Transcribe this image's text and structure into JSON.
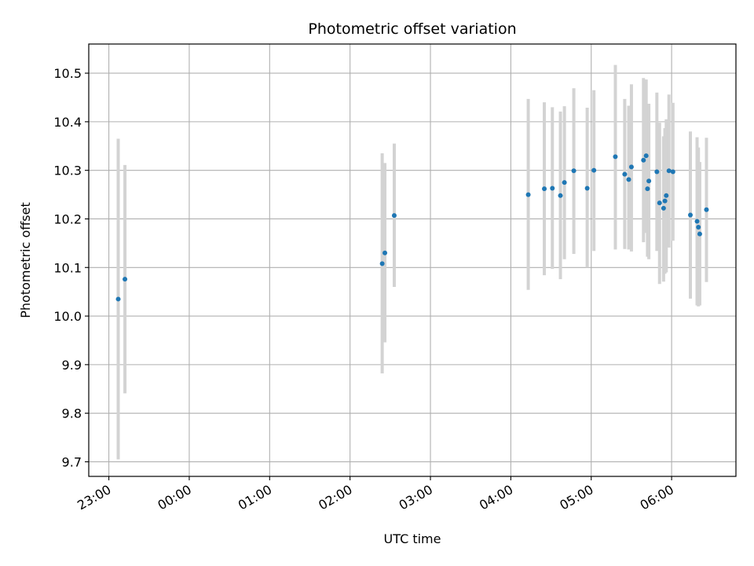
{
  "chart_data": {
    "type": "scatter",
    "title": "Photometric offset variation",
    "xlabel": "UTC time",
    "ylabel": "Photometric offset",
    "xlim": [
      "22:45",
      "06:48"
    ],
    "ylim": [
      9.67,
      10.56
    ],
    "x_ticks": [
      "23:00",
      "00:00",
      "01:00",
      "02:00",
      "03:00",
      "04:00",
      "05:00",
      "06:00"
    ],
    "y_ticks": [
      "9.7",
      "9.8",
      "9.9",
      "10.0",
      "10.1",
      "10.2",
      "10.3",
      "10.4",
      "10.5"
    ],
    "grid": true,
    "legend": "none",
    "colors": {
      "point": "#1f77b4",
      "errorbar": "#d3d3d3",
      "grid": "#b0b0b0"
    },
    "points": [
      {
        "t": "23:07",
        "y": 10.035,
        "lo": 9.705,
        "hi": 10.365
      },
      {
        "t": "23:12",
        "y": 10.076,
        "lo": 9.841,
        "hi": 10.311
      },
      {
        "t": "02:24",
        "y": 10.108,
        "lo": 9.882,
        "hi": 10.335
      },
      {
        "t": "02:26",
        "y": 10.13,
        "lo": 9.946,
        "hi": 10.315
      },
      {
        "t": "02:33",
        "y": 10.207,
        "lo": 10.06,
        "hi": 10.355
      },
      {
        "t": "04:13",
        "y": 10.25,
        "lo": 10.054,
        "hi": 10.447
      },
      {
        "t": "04:25",
        "y": 10.262,
        "lo": 10.084,
        "hi": 10.44
      },
      {
        "t": "04:31",
        "y": 10.263,
        "lo": 10.097,
        "hi": 10.43
      },
      {
        "t": "04:37",
        "y": 10.248,
        "lo": 10.076,
        "hi": 10.421
      },
      {
        "t": "04:40",
        "y": 10.275,
        "lo": 10.117,
        "hi": 10.432
      },
      {
        "t": "04:47",
        "y": 10.299,
        "lo": 10.128,
        "hi": 10.469
      },
      {
        "t": "04:57",
        "y": 10.263,
        "lo": 10.1,
        "hi": 10.429
      },
      {
        "t": "05:02",
        "y": 10.3,
        "lo": 10.134,
        "hi": 10.465
      },
      {
        "t": "05:18",
        "y": 10.328,
        "lo": 10.137,
        "hi": 10.517
      },
      {
        "t": "05:25",
        "y": 10.292,
        "lo": 10.138,
        "hi": 10.447
      },
      {
        "t": "05:28",
        "y": 10.281,
        "lo": 10.137,
        "hi": 10.433
      },
      {
        "t": "05:30",
        "y": 10.307,
        "lo": 10.133,
        "hi": 10.477
      },
      {
        "t": "05:39",
        "y": 10.321,
        "lo": 10.152,
        "hi": 10.49
      },
      {
        "t": "05:41",
        "y": 10.33,
        "lo": 10.171,
        "hi": 10.487
      },
      {
        "t": "05:42",
        "y": 10.262,
        "lo": 10.122,
        "hi": 10.4
      },
      {
        "t": "05:43",
        "y": 10.278,
        "lo": 10.117,
        "hi": 10.437
      },
      {
        "t": "05:49",
        "y": 10.297,
        "lo": 10.134,
        "hi": 10.46
      },
      {
        "t": "05:51",
        "y": 10.233,
        "lo": 10.066,
        "hi": 10.398
      },
      {
        "t": "05:54",
        "y": 10.222,
        "lo": 10.071,
        "hi": 10.37
      },
      {
        "t": "05:55",
        "y": 10.237,
        "lo": 10.087,
        "hi": 10.387
      },
      {
        "t": "05:56",
        "y": 10.248,
        "lo": 10.09,
        "hi": 10.405
      },
      {
        "t": "05:58",
        "y": 10.299,
        "lo": 10.141,
        "hi": 10.456
      },
      {
        "t": "06:01",
        "y": 10.297,
        "lo": 10.155,
        "hi": 10.439
      },
      {
        "t": "06:14",
        "y": 10.208,
        "lo": 10.036,
        "hi": 10.38
      },
      {
        "t": "06:19",
        "y": 10.195,
        "lo": 10.022,
        "hi": 10.368
      },
      {
        "t": "06:20",
        "y": 10.183,
        "lo": 10.02,
        "hi": 10.347
      },
      {
        "t": "06:21",
        "y": 10.169,
        "lo": 10.022,
        "hi": 10.317
      },
      {
        "t": "06:26",
        "y": 10.219,
        "lo": 10.07,
        "hi": 10.367
      }
    ]
  }
}
